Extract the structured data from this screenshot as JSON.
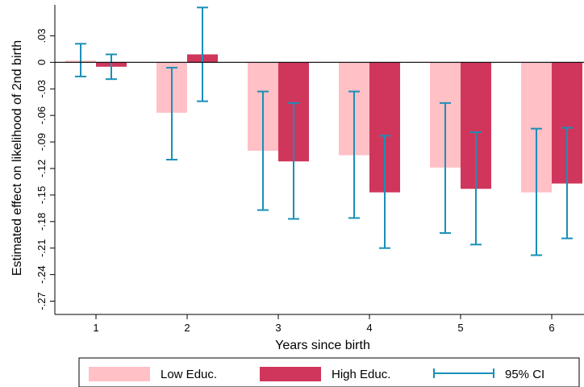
{
  "chart_data": {
    "type": "bar",
    "xlabel": "Years since birth",
    "ylabel": "Estimated effect on likelihood of 2nd birth",
    "categories": [
      "1",
      "2",
      "3",
      "4",
      "5",
      "6"
    ],
    "ylim": [
      -0.285,
      0.065
    ],
    "yticks": [
      0.03,
      0,
      -0.03,
      -0.06,
      -0.09,
      -0.12,
      -0.15,
      -0.18,
      -0.21,
      -0.24,
      -0.27
    ],
    "ytick_labels": [
      ".03",
      "0",
      "-.03",
      "-.06",
      "-.09",
      "-.12",
      "-.15",
      "-.18",
      "-.21",
      "-.24",
      "-.27"
    ],
    "grid": false,
    "legend_position": "bottom",
    "series": [
      {
        "name": "Low Educ.",
        "color": "#ffc0c6",
        "values": [
          0.002,
          -0.057,
          -0.1,
          -0.105,
          -0.119,
          -0.147
        ],
        "ci": [
          [
            -0.016,
            0.021
          ],
          [
            -0.11,
            -0.006
          ],
          [
            -0.167,
            -0.033
          ],
          [
            -0.176,
            -0.033
          ],
          [
            -0.193,
            -0.046
          ],
          [
            -0.218,
            -0.075
          ]
        ]
      },
      {
        "name": "High Educ.",
        "color": "#d0365c",
        "values": [
          -0.005,
          0.009,
          -0.112,
          -0.147,
          -0.143,
          -0.137
        ],
        "ci": [
          [
            -0.019,
            0.009
          ],
          [
            -0.044,
            0.062
          ],
          [
            -0.177,
            -0.046
          ],
          [
            -0.21,
            -0.083
          ],
          [
            -0.206,
            -0.079
          ],
          [
            -0.199,
            -0.074
          ]
        ]
      }
    ],
    "ci_label": "95% CI",
    "ci_color": "#1a8fb8"
  }
}
